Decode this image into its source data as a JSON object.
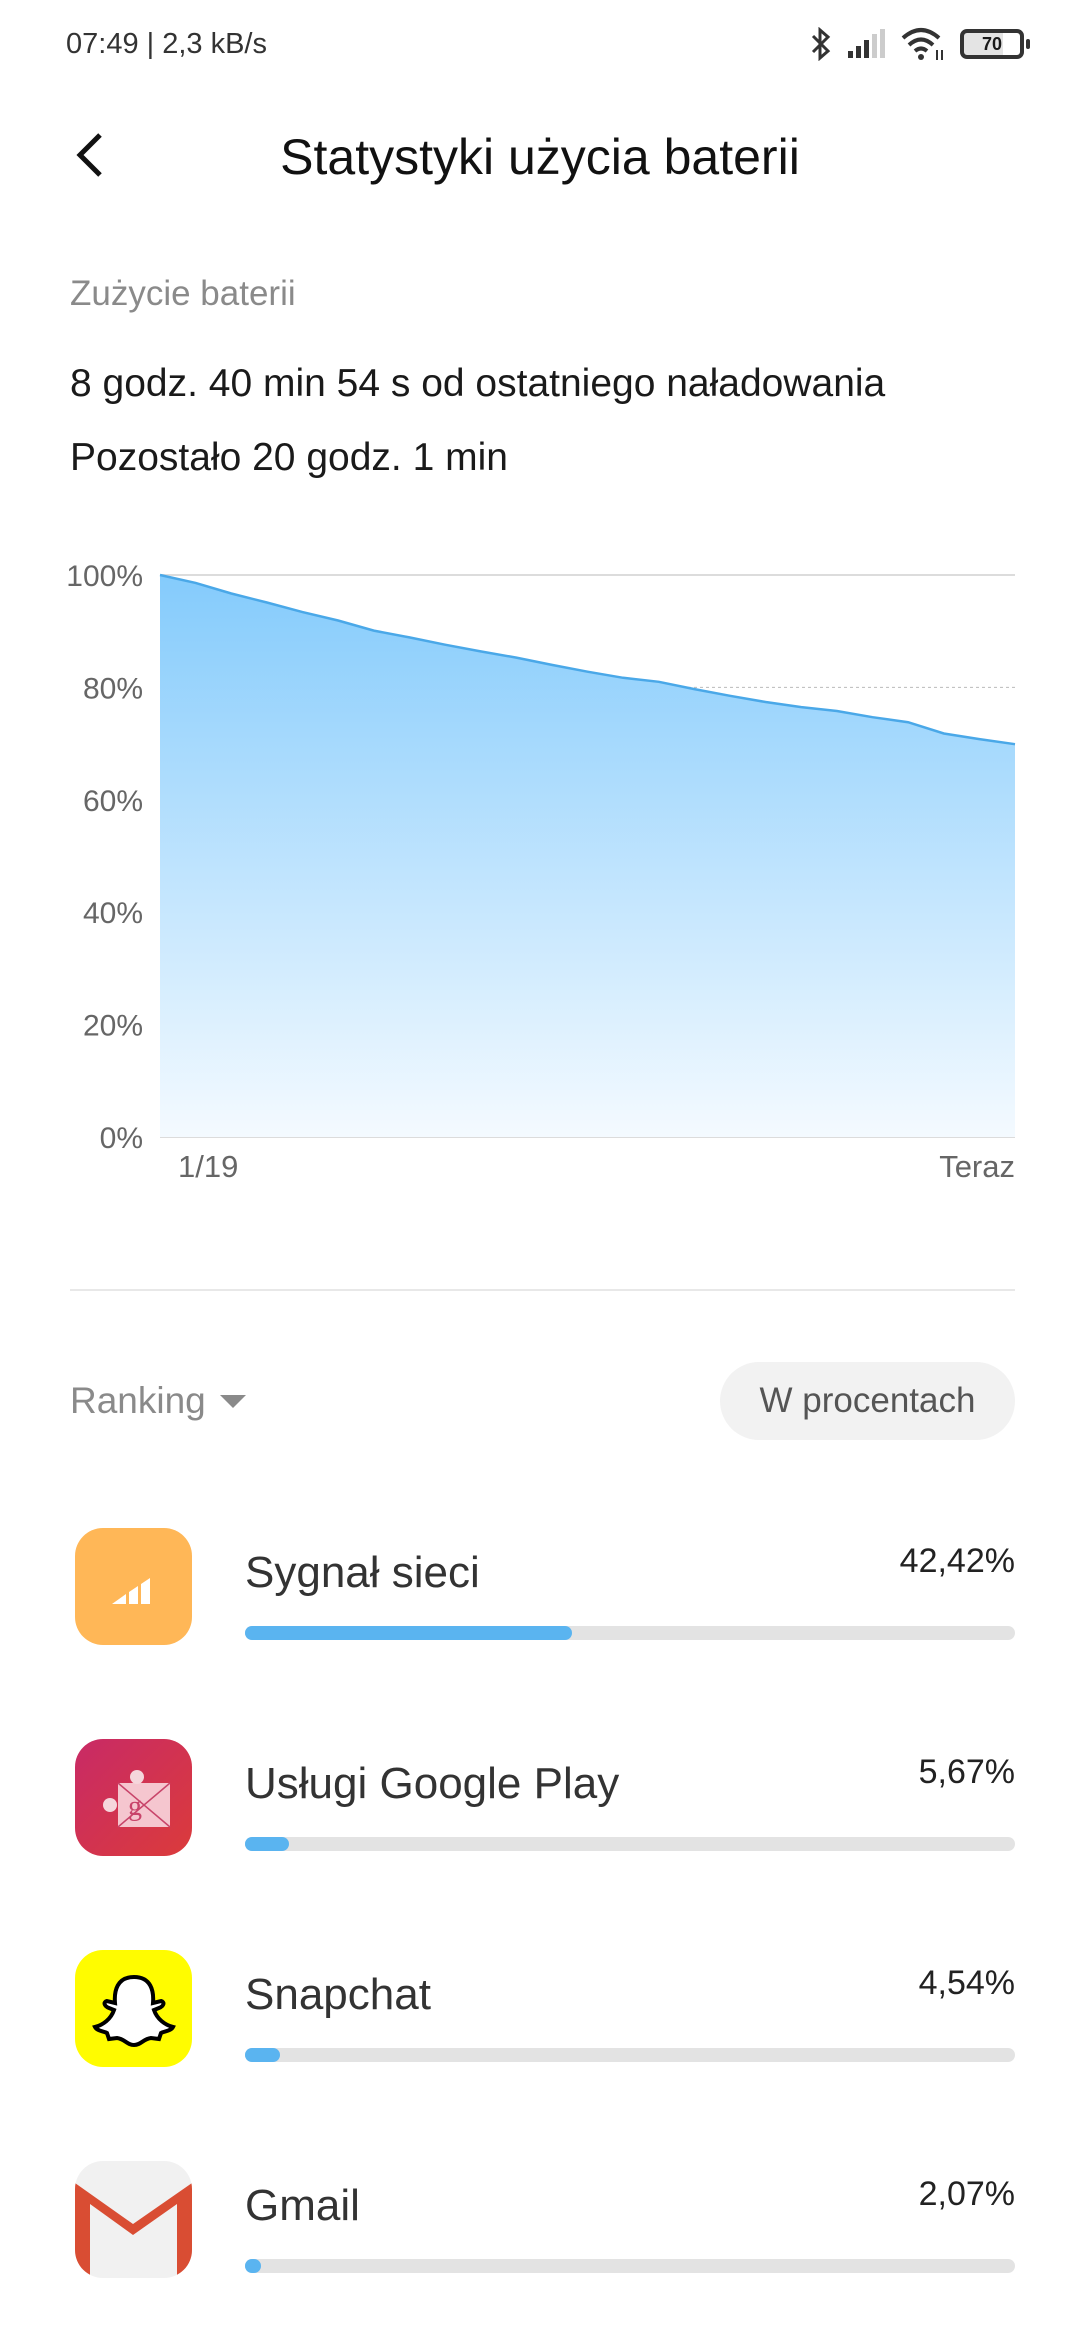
{
  "status_bar": {
    "time_speed": "07:49 | 2,3 kB/s",
    "battery_level": "70",
    "icons": [
      "bluetooth-icon",
      "signal-icon",
      "wifi-icon",
      "battery-icon"
    ]
  },
  "header": {
    "title": "Statystyki użycia baterii",
    "back_icon": "chevron-left-icon"
  },
  "summary": {
    "label": "Zużycie baterii",
    "since_charge": "8 godz. 40 min 54 s od ostatniego naładowania",
    "remaining": "Pozostało 20 godz. 1 min"
  },
  "chart_data": {
    "type": "area",
    "y_ticks": [
      "100%",
      "80%",
      "60%",
      "40%",
      "20%",
      "0%"
    ],
    "ylim": [
      0,
      100
    ],
    "x_labels": {
      "start": "1/19",
      "end": "Teraz"
    },
    "grid": true,
    "values": [
      100,
      98.6,
      96.7,
      95.1,
      93.4,
      91.9,
      90.1,
      88.9,
      87.6,
      86.4,
      85.3,
      84.0,
      82.8,
      81.7,
      81.0,
      79.7,
      78.5,
      77.4,
      76.5,
      75.8,
      74.7,
      73.8,
      71.8,
      70.8,
      69.9
    ],
    "line_color": "#4aa8e8",
    "fill_color": "#8ccffd"
  },
  "controls": {
    "ranking": "Ranking",
    "mode_button": "W procentach"
  },
  "apps": [
    {
      "name": "Sygnał sieci",
      "percent": "42,42%",
      "value": 42.42,
      "icon": "signal-app-icon"
    },
    {
      "name": "Usługi Google Play",
      "percent": "5,67%",
      "value": 5.67,
      "icon": "google-play-services-icon"
    },
    {
      "name": "Snapchat",
      "percent": "4,54%",
      "value": 4.54,
      "icon": "snapchat-icon"
    },
    {
      "name": "Gmail",
      "percent": "2,07%",
      "value": 2.07,
      "icon": "gmail-icon"
    }
  ]
}
